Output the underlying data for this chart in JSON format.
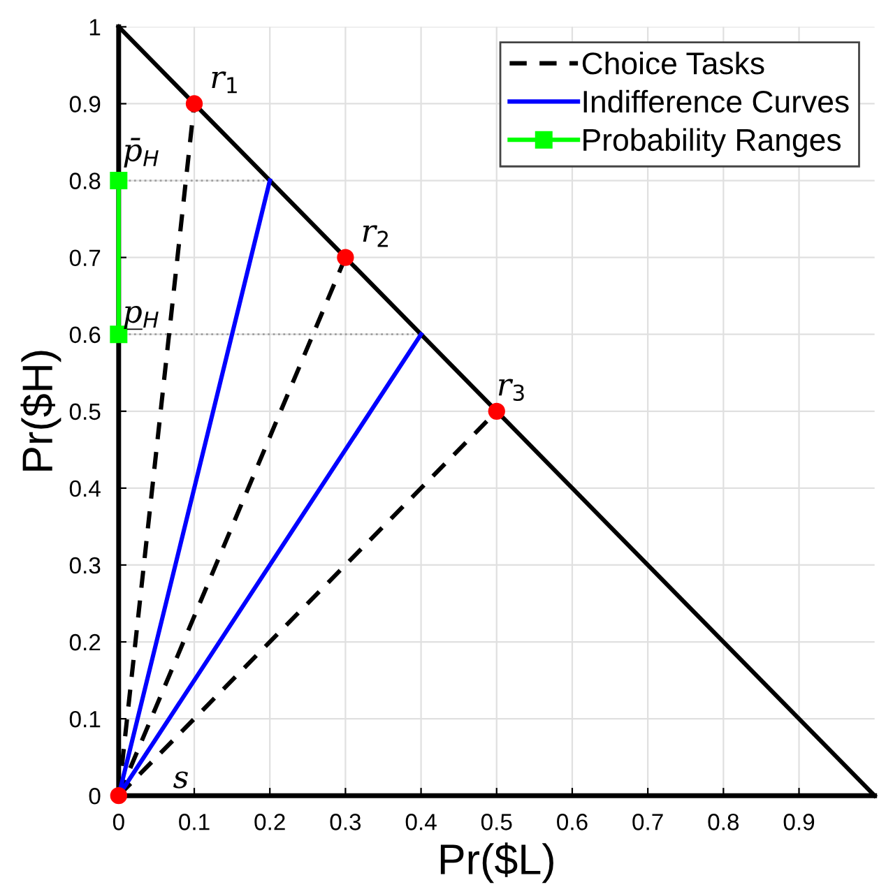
{
  "chart_data": {
    "type": "line",
    "xlabel": "Pr($L)",
    "ylabel": "Pr($H)",
    "xlim": [
      0,
      1
    ],
    "ylim": [
      0,
      1
    ],
    "xticks": [
      0,
      0.1,
      0.2,
      0.3,
      0.4,
      0.5,
      0.6,
      0.7,
      0.8,
      0.9
    ],
    "yticks": [
      0,
      0.1,
      0.2,
      0.3,
      0.4,
      0.5,
      0.6,
      0.7,
      0.8,
      0.9,
      1
    ],
    "grid": true,
    "legend": "top right",
    "series": [
      {
        "color": "#a0a0a0",
        "line_style": "dotted",
        "x": [
          0,
          0.2,
          null,
          0,
          0.4
        ],
        "values": [
          0.8,
          0.8,
          null,
          0.6,
          0.6
        ]
      },
      {
        "color": "#000000",
        "x": [
          0,
          1
        ],
        "values": [
          1,
          0
        ]
      },
      {
        "name": "Choice Tasks",
        "color": "#000000",
        "line_style": "dashed",
        "x": [
          0,
          0.1,
          null,
          0,
          0.3,
          null,
          0,
          0.5
        ],
        "values": [
          0,
          0.9,
          null,
          0,
          0.7,
          null,
          0,
          0.5
        ]
      },
      {
        "name": "Indifference Curves",
        "color": "#0000ff",
        "line_style": "solid",
        "x": [
          0,
          0.2,
          null,
          0,
          0.4
        ],
        "values": [
          0,
          0.8,
          null,
          0,
          0.6
        ]
      },
      {
        "name": "Probability Ranges",
        "color": "#00ff00",
        "marker": "square",
        "line_style": "solid",
        "x": [
          0,
          0
        ],
        "values": [
          0.6,
          0.8
        ]
      },
      {
        "type": "scatter",
        "color": "#ff0000",
        "marker": "circle",
        "x": [
          0,
          0.1,
          0.3,
          0.5
        ],
        "values": [
          0,
          0.9,
          0.7,
          0.5
        ]
      }
    ],
    "annotations": [
      {
        "text": "r$_{1}$",
        "x": 0.1,
        "y": 0.9
      },
      {
        "text": "r$_{2}$",
        "x": 0.3,
        "y": 0.7
      },
      {
        "text": "r$_{3}$",
        "x": 0.5,
        "y": 0.5
      },
      {
        "text": "s",
        "x": 0,
        "y": 0
      },
      {
        "text": "p̄$_{H}$",
        "x": 0,
        "y": 0.8
      },
      {
        "text": "p̲$_{H}$",
        "x": 0,
        "y": 0.6
      }
    ]
  }
}
